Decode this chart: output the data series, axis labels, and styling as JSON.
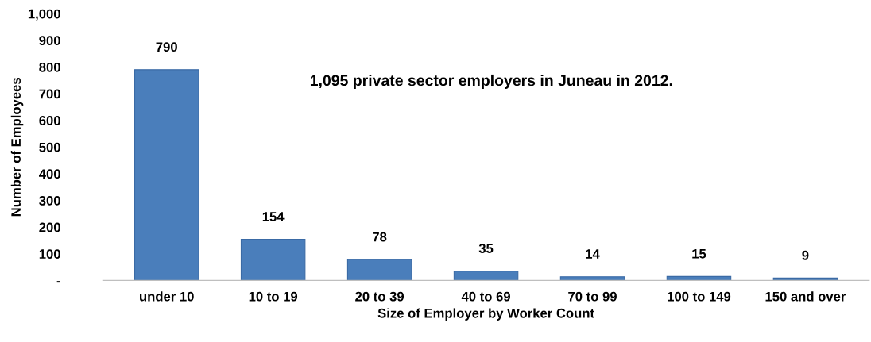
{
  "chart_data": {
    "type": "bar",
    "xlabel": "Size of Employer by Worker Count",
    "ylabel": "Number of Employees",
    "categories": [
      "under 10",
      "10 to 19",
      "20 to 39",
      "40 to 69",
      "70 to 99",
      "100 to 149",
      "150 and over"
    ],
    "values": [
      790,
      154,
      78,
      35,
      14,
      15,
      9
    ],
    "color": "#4a7ebb",
    "data_labels": true,
    "ylim": [
      0,
      1000
    ],
    "yticks": [
      {
        "value": 0,
        "label": "-"
      },
      100,
      200,
      300,
      400,
      500,
      600,
      700,
      800,
      900,
      {
        "value": 1000,
        "label": "1,000"
      }
    ],
    "annotations": [
      "1,095 private sector employers in Juneau in 2012."
    ],
    "grid": false,
    "legend": false
  }
}
